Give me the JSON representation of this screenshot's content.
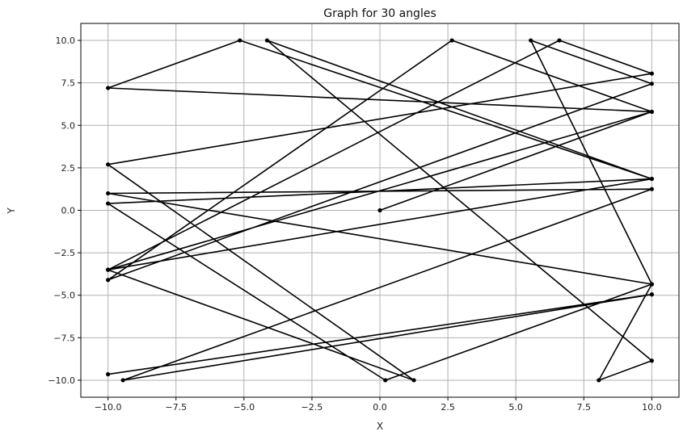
{
  "chart_data": {
    "type": "line",
    "title": "Graph for 30 angles",
    "xlabel": "X",
    "ylabel": "Y",
    "xlim": [
      -11.0,
      11.0
    ],
    "ylim": [
      -11.0,
      11.0
    ],
    "x_ticks": [
      -10.0,
      -7.5,
      -5.0,
      -2.5,
      0.0,
      2.5,
      5.0,
      7.5,
      10.0
    ],
    "x_tick_labels": [
      "−10.0",
      "−7.5",
      "−5.0",
      "−2.5",
      "0.0",
      "2.5",
      "5.0",
      "7.5",
      "10.0"
    ],
    "y_ticks": [
      10.0,
      7.5,
      5.0,
      2.5,
      0.0,
      -2.5,
      -5.0,
      -7.5,
      -10.0
    ],
    "y_tick_labels": [
      "10.0",
      "7.5",
      "5.0",
      "2.5",
      "0.0",
      "−2.5",
      "−5.0",
      "−7.5",
      "−10.0"
    ],
    "grid": true,
    "line_color": "#000000",
    "grid_color": "#b0b0b0",
    "series": [
      {
        "x": [
          0.0,
          10.0,
          -10.0,
          -5.15,
          10.0,
          -4.15,
          10.0,
          8.05,
          10.0,
          5.55,
          10.0,
          -10.0,
          2.65,
          10.0,
          -10.0,
          6.6,
          10.0,
          -10.0,
          1.25,
          -10.0,
          10.0,
          -10.0,
          0.2,
          10.0,
          -10.0,
          10.0,
          -9.45,
          10.0,
          -10.0,
          10.0
        ],
        "y": [
          0.0,
          5.8,
          7.2,
          10.0,
          1.85,
          10.0,
          -8.85,
          -10.0,
          -4.35,
          10.0,
          7.45,
          -4.1,
          10.0,
          5.8,
          -3.5,
          10.0,
          8.05,
          2.7,
          -10.0,
          -3.5,
          1.85,
          0.4,
          -10.0,
          -4.35,
          1.0,
          1.25,
          -10.0,
          -4.95,
          -9.65,
          -4.95
        ]
      }
    ]
  }
}
